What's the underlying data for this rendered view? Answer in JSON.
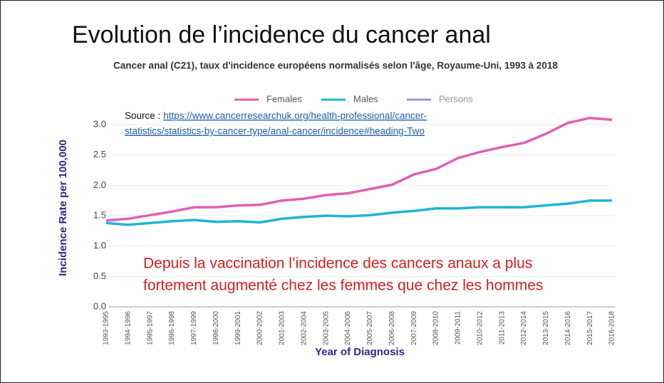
{
  "slide_title": "Evolution de l’incidence du cancer anal",
  "source_label": "Source :",
  "source_link": [
    "https://www.cancerresearchuk.org/health-professional/cancer-",
    "statistics/statistics-by-cancer-type/anal-cancer/incidence#heading-Two"
  ],
  "chart_data": {
    "type": "line",
    "title": "Cancer anal (C21), taux d'incidence européens normalisés selon l'âge, Royaume-Uni, 1993 à 2018",
    "x_label": "Year of Diagnosis",
    "y_label": "Incidence Rate per 100,000",
    "annotation": [
      "Depuis la vaccination l’incidence des cancers anaux a plus",
      "fortement augmenté chez les femmes que chez les hommes"
    ],
    "categories": [
      "1993-1995",
      "1994-1996",
      "1995-1997",
      "1996-1998",
      "1997-1999",
      "1998-2000",
      "1999-2001",
      "2000-2002",
      "2001-2003",
      "2002-2004",
      "2003-2005",
      "2004-2006",
      "2005-2007",
      "2006-2008",
      "2007-2009",
      "2008-2010",
      "2009-2011",
      "2010-2012",
      "2011-2013",
      "2012-2014",
      "2013-2015",
      "2014-2016",
      "2015-2017",
      "2016-2018"
    ],
    "series": [
      {
        "name": "Females",
        "color": "#e25fb3",
        "values": [
          1.42,
          1.45,
          1.51,
          1.57,
          1.64,
          1.64,
          1.67,
          1.68,
          1.75,
          1.78,
          1.84,
          1.87,
          1.94,
          2.01,
          2.18,
          2.27,
          2.45,
          2.55,
          2.63,
          2.7,
          2.85,
          3.03,
          3.11,
          3.08
        ]
      },
      {
        "name": "Males",
        "color": "#1cb5d9",
        "values": [
          1.38,
          1.35,
          1.38,
          1.41,
          1.43,
          1.4,
          1.41,
          1.39,
          1.45,
          1.48,
          1.5,
          1.49,
          1.51,
          1.55,
          1.58,
          1.62,
          1.62,
          1.64,
          1.64,
          1.64,
          1.67,
          1.7,
          1.75,
          1.75
        ]
      },
      {
        "name": "Persons",
        "color": "#a48fd2",
        "hidden": true,
        "values": [
          null,
          null,
          null,
          null,
          null,
          null,
          null,
          null,
          null,
          null,
          null,
          null,
          null,
          null,
          null,
          null,
          null,
          null,
          null,
          null,
          null,
          null,
          null,
          null
        ]
      }
    ],
    "ylim": [
      0,
      3.2
    ],
    "yticks": [
      {
        "value": 0,
        "label": "0.0"
      },
      0.5,
      {
        "value": 1,
        "label": "1.0"
      },
      1.5,
      {
        "value": 2,
        "label": "2.0"
      },
      2.5,
      {
        "value": 3,
        "label": "3.0"
      }
    ],
    "grid": true
  }
}
